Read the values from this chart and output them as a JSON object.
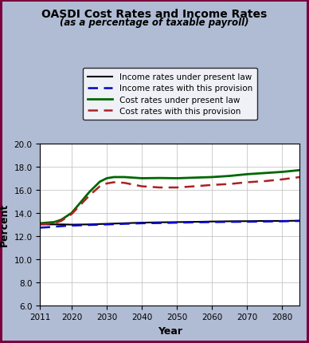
{
  "title": "OASDI Cost Rates and Income Rates",
  "subtitle": "(as a percentage of taxable payroll)",
  "xlabel": "Year",
  "ylabel": "Percent",
  "ylim": [
    6.0,
    20.0
  ],
  "yticks": [
    6.0,
    8.0,
    10.0,
    12.0,
    14.0,
    16.0,
    18.0,
    20.0
  ],
  "xlim": [
    2011,
    2085
  ],
  "xticks": [
    2011,
    2020,
    2030,
    2040,
    2050,
    2060,
    2070,
    2080
  ],
  "background_color": "#b0bcd4",
  "plot_bg_color": "#ffffff",
  "border_color": "#7b003b",
  "lines": {
    "income_present_law": {
      "color": "#000000",
      "linestyle": "solid",
      "linewidth": 1.5,
      "label": "Income rates under present law",
      "x": [
        2011,
        2013,
        2015,
        2017,
        2020,
        2025,
        2030,
        2035,
        2040,
        2045,
        2050,
        2055,
        2060,
        2065,
        2070,
        2075,
        2080,
        2085
      ],
      "y": [
        13.0,
        13.0,
        13.0,
        13.0,
        12.98,
        13.0,
        13.05,
        13.1,
        13.15,
        13.18,
        13.2,
        13.22,
        13.25,
        13.27,
        13.28,
        13.3,
        13.3,
        13.32
      ]
    },
    "income_provision": {
      "color": "#0000cc",
      "linestyle": "dashed",
      "linewidth": 1.8,
      "label": "Income rates with this provision",
      "x": [
        2011,
        2013,
        2015,
        2017,
        2020,
        2025,
        2030,
        2035,
        2040,
        2045,
        2050,
        2055,
        2060,
        2065,
        2070,
        2075,
        2080,
        2085
      ],
      "y": [
        12.72,
        12.75,
        12.8,
        12.85,
        12.9,
        12.95,
        13.0,
        13.05,
        13.1,
        13.12,
        13.15,
        13.18,
        13.2,
        13.22,
        13.23,
        13.25,
        13.27,
        13.3
      ]
    },
    "cost_present_law": {
      "color": "#006600",
      "linestyle": "solid",
      "linewidth": 2.0,
      "label": "Cost rates under present law",
      "x": [
        2011,
        2013,
        2015,
        2017,
        2020,
        2025,
        2028,
        2030,
        2032,
        2035,
        2040,
        2045,
        2050,
        2055,
        2060,
        2065,
        2070,
        2075,
        2080,
        2085
      ],
      "y": [
        13.1,
        13.15,
        13.2,
        13.4,
        14.0,
        15.8,
        16.7,
        17.0,
        17.1,
        17.1,
        17.0,
        17.02,
        17.0,
        17.05,
        17.1,
        17.2,
        17.35,
        17.45,
        17.55,
        17.7
      ]
    },
    "cost_provision": {
      "color": "#aa2222",
      "linestyle": "dashed",
      "linewidth": 1.8,
      "label": "Cost rates with this provision",
      "x": [
        2011,
        2013,
        2015,
        2017,
        2020,
        2025,
        2028,
        2030,
        2032,
        2035,
        2040,
        2045,
        2050,
        2055,
        2060,
        2065,
        2070,
        2075,
        2080,
        2085
      ],
      "y": [
        13.0,
        13.05,
        13.1,
        13.3,
        13.9,
        15.5,
        16.3,
        16.55,
        16.65,
        16.6,
        16.3,
        16.2,
        16.2,
        16.3,
        16.42,
        16.5,
        16.65,
        16.75,
        16.9,
        17.1
      ]
    }
  }
}
